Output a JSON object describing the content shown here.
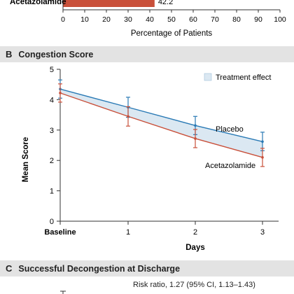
{
  "panel_a": {
    "bar_label": "Acetazolamide",
    "bar_value_label": "42.2",
    "xlabel": "Percentage of Patients",
    "x_ticks": [
      "0",
      "10",
      "20",
      "30",
      "40",
      "50",
      "60",
      "70",
      "80",
      "90",
      "100"
    ]
  },
  "panel_b": {
    "letter": "B",
    "title": "Congestion Score",
    "legend_label": "Treatment effect",
    "placebo_label": "Placebo",
    "acetazolamide_label": "Acetazolamide"
  },
  "panel_c": {
    "letter": "C",
    "title": "Successful Decongestion at Discharge",
    "risk_ratio": "Risk ratio, 1.27 (95% CI, 1.13–1.43)"
  },
  "colors": {
    "placebo": "#2a7ab5",
    "acetazolamide": "#c9503a",
    "band": "#dbe8f2",
    "axis": "#333333"
  },
  "chart_data": [
    {
      "type": "bar",
      "categories": [
        "Acetazolamide"
      ],
      "values": [
        42.2
      ],
      "xlabel": "Percentage of Patients",
      "xlim": [
        0,
        100
      ],
      "x_ticks": [
        0,
        10,
        20,
        30,
        40,
        50,
        60,
        70,
        80,
        90,
        100
      ]
    },
    {
      "type": "line",
      "title": "Congestion Score",
      "categories": [
        "Baseline",
        "1",
        "2",
        "3"
      ],
      "x_ticks": [
        "Baseline",
        "1",
        "2",
        "3"
      ],
      "xlabel": "Days",
      "ylabel": "Mean Score",
      "ylim": [
        0,
        5
      ],
      "y_ticks": [
        0,
        1,
        2,
        3,
        4,
        5
      ],
      "series": [
        {
          "name": "Placebo",
          "values": [
            4.35,
            3.75,
            3.15,
            2.62
          ],
          "err_low": [
            4.05,
            3.42,
            2.85,
            2.32
          ],
          "err_high": [
            4.65,
            4.08,
            3.45,
            2.93
          ]
        },
        {
          "name": "Acetazolamide",
          "values": [
            4.22,
            3.45,
            2.72,
            2.1
          ],
          "err_low": [
            3.92,
            3.13,
            2.42,
            1.8
          ],
          "err_high": [
            4.52,
            3.77,
            3.02,
            2.4
          ]
        }
      ],
      "legend": [
        "Treatment effect"
      ],
      "legend_position": "top-right"
    }
  ]
}
